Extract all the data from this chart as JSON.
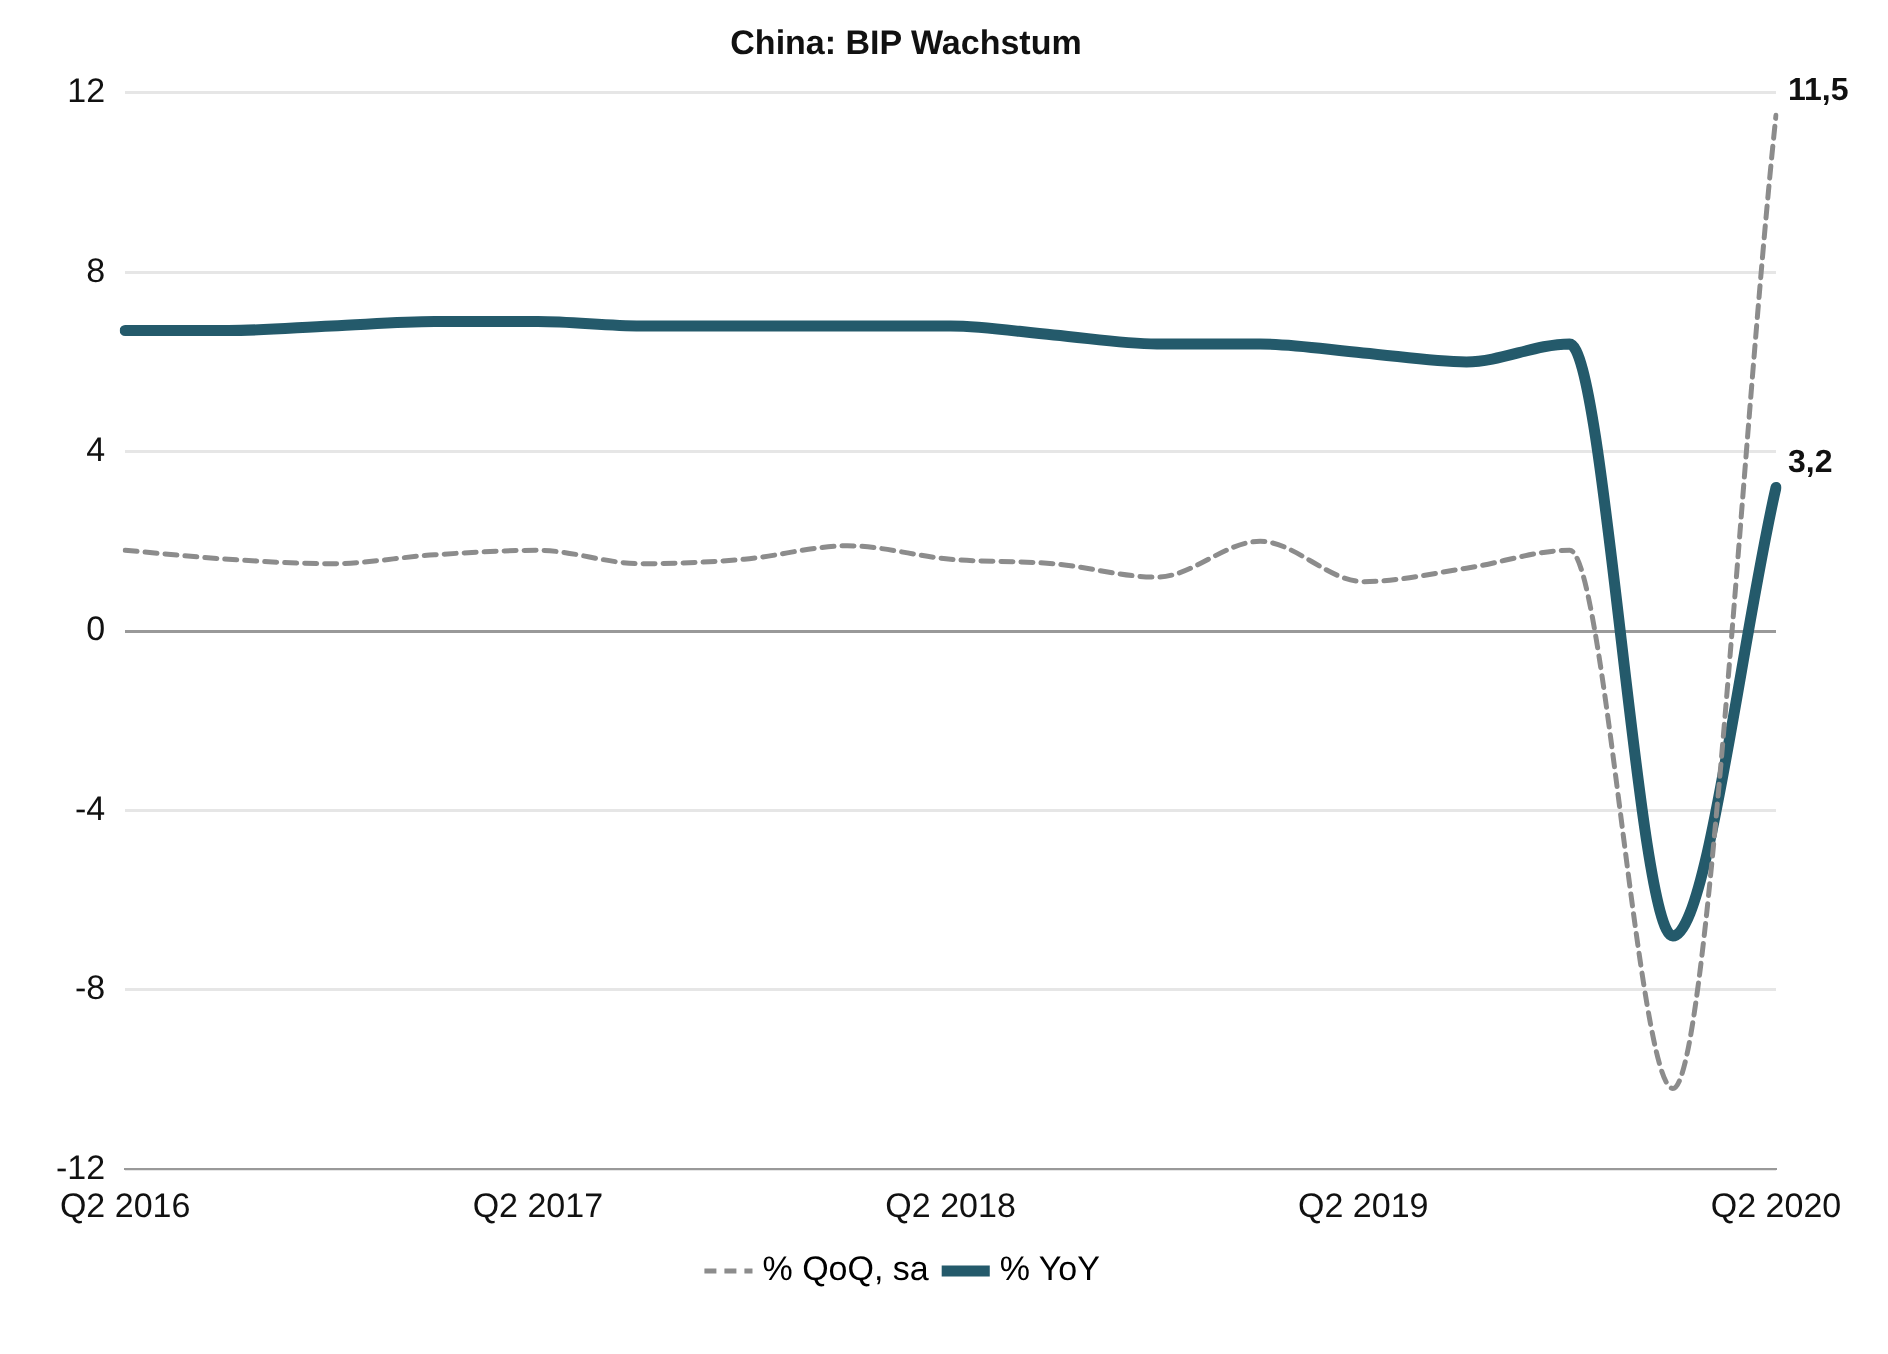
{
  "chart_data": {
    "type": "line",
    "title": "China: BIP Wachstum",
    "categories": [
      "Q2 2016",
      null,
      null,
      null,
      "Q2 2017",
      null,
      null,
      null,
      "Q2 2018",
      null,
      null,
      null,
      "Q2 2019",
      null,
      null,
      null,
      "Q2 2020"
    ],
    "series": [
      {
        "name": "% QoQ, sa",
        "color": "#8c8c8c",
        "line_style": "dashed",
        "values": [
          1.8,
          1.6,
          1.5,
          1.7,
          1.8,
          1.5,
          1.6,
          1.9,
          1.6,
          1.5,
          1.2,
          2.0,
          1.1,
          1.4,
          1.8,
          -10.2,
          11.5
        ],
        "value_labels": [
          null,
          null,
          null,
          null,
          null,
          null,
          null,
          null,
          null,
          null,
          null,
          null,
          null,
          null,
          null,
          null,
          "11,5"
        ]
      },
      {
        "name": "% YoY",
        "color": "#245a6b",
        "line_style": "solid",
        "values": [
          6.7,
          6.7,
          6.8,
          6.9,
          6.9,
          6.8,
          6.8,
          6.8,
          6.8,
          6.6,
          6.4,
          6.4,
          6.2,
          6.0,
          6.4,
          -6.8,
          3.2
        ],
        "value_labels": [
          null,
          null,
          null,
          null,
          null,
          null,
          null,
          null,
          null,
          null,
          null,
          null,
          null,
          null,
          null,
          null,
          "3,2"
        ]
      }
    ],
    "ylim": [
      -12,
      12
    ],
    "yticks": [
      -12,
      -8,
      -4,
      0,
      4,
      8,
      12
    ],
    "grid": "y",
    "legend": "bottom",
    "marker": "none"
  }
}
